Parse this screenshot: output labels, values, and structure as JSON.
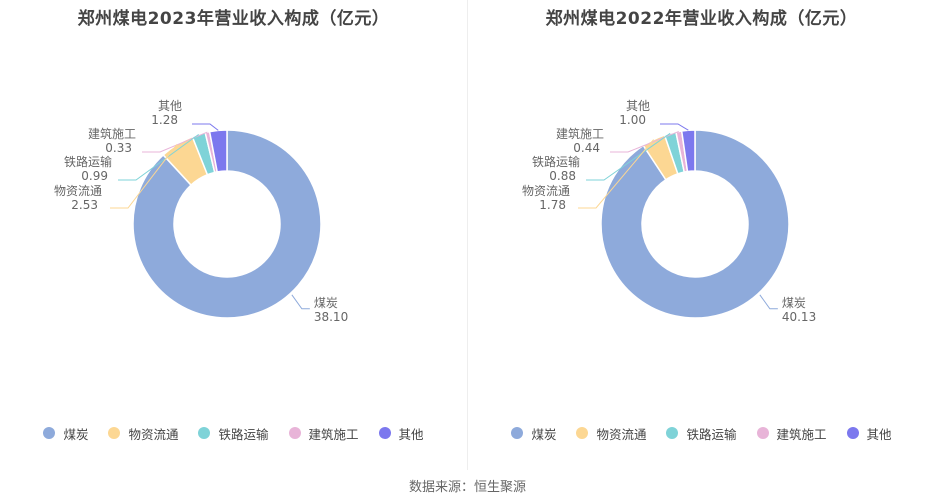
{
  "source": "数据来源：恒生聚源",
  "chart_data": [
    {
      "type": "pie",
      "title": "郑州煤电2023年营业收入构成（亿元）",
      "categories": [
        "煤炭",
        "物资流通",
        "铁路运输",
        "建筑施工",
        "其他"
      ],
      "values": [
        38.1,
        2.53,
        0.99,
        0.33,
        1.28
      ],
      "value_labels": [
        "38.10",
        "2.53",
        "0.99",
        "0.33",
        "1.28"
      ],
      "colors": [
        "#8eaadb",
        "#fcd793",
        "#7fd3d8",
        "#e8b4d8",
        "#7c78ee"
      ],
      "legend": "bottom"
    },
    {
      "type": "pie",
      "title": "郑州煤电2022年营业收入构成（亿元）",
      "categories": [
        "煤炭",
        "物资流通",
        "铁路运输",
        "建筑施工",
        "其他"
      ],
      "values": [
        40.13,
        1.78,
        0.88,
        0.44,
        1.0
      ],
      "value_labels": [
        "40.13",
        "1.78",
        "0.88",
        "0.44",
        "1.00"
      ],
      "colors": [
        "#8eaadb",
        "#fcd793",
        "#7fd3d8",
        "#e8b4d8",
        "#7c78ee"
      ],
      "legend": "bottom"
    }
  ]
}
